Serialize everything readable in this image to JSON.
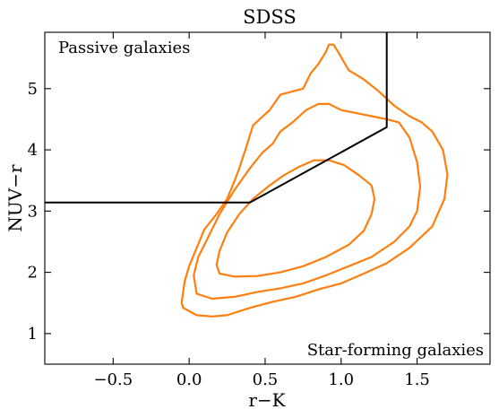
{
  "chart_data": {
    "type": "line",
    "title": "SDSS",
    "xlabel": "r−K",
    "ylabel": "NUV−r",
    "xlim": [
      -0.95,
      1.98
    ],
    "ylim": [
      0.5,
      5.92
    ],
    "xticks": [
      -0.5,
      0.0,
      0.5,
      1.0,
      1.5
    ],
    "xtick_labels": [
      "−0.5",
      "0.0",
      "0.5",
      "1.0",
      "1.5"
    ],
    "yticks": [
      1,
      2,
      3,
      4,
      5
    ],
    "ytick_labels": [
      "1",
      "2",
      "3",
      "4",
      "5"
    ],
    "grid": false,
    "legend": "none",
    "annotations": {
      "passive": "Passive galaxies",
      "star_forming": "Star-forming galaxies"
    },
    "colors": {
      "contour": "#ff7f0e",
      "boundary": "#000000"
    },
    "boundary_line": {
      "x": [
        -0.95,
        0.4,
        1.3,
        1.3
      ],
      "y": [
        3.14,
        3.14,
        4.37,
        5.92
      ]
    },
    "contours": [
      {
        "level": "outer",
        "x": [
          -0.05,
          -0.04,
          0.05,
          0.15,
          0.25,
          0.4,
          0.55,
          0.7,
          0.85,
          1.0,
          1.15,
          1.3,
          1.45,
          1.6,
          1.68,
          1.7,
          1.67,
          1.6,
          1.53,
          1.45,
          1.35,
          1.25,
          1.15,
          1.05,
          0.98,
          0.95,
          0.92,
          0.9,
          0.85,
          0.8,
          0.75,
          0.6,
          0.53,
          0.42,
          0.37,
          0.33,
          0.3,
          0.25,
          0.18,
          0.1,
          0.05,
          0.0,
          -0.03,
          -0.05
        ],
        "y": [
          1.5,
          1.42,
          1.3,
          1.28,
          1.3,
          1.42,
          1.52,
          1.6,
          1.72,
          1.82,
          1.98,
          2.15,
          2.4,
          2.75,
          3.2,
          3.6,
          4.0,
          4.3,
          4.45,
          4.55,
          4.72,
          4.95,
          5.15,
          5.3,
          5.6,
          5.72,
          5.72,
          5.6,
          5.4,
          5.25,
          5.0,
          4.9,
          4.65,
          4.4,
          4.0,
          3.7,
          3.5,
          3.2,
          2.95,
          2.7,
          2.4,
          2.1,
          1.85,
          1.5
        ]
      },
      {
        "level": "middle",
        "x": [
          0.05,
          0.15,
          0.3,
          0.45,
          0.6,
          0.75,
          0.9,
          1.05,
          1.2,
          1.35,
          1.45,
          1.5,
          1.52,
          1.5,
          1.45,
          1.38,
          1.3,
          1.2,
          1.1,
          1.0,
          0.92,
          0.85,
          0.77,
          0.68,
          0.6,
          0.55,
          0.48,
          0.4,
          0.3,
          0.2,
          0.12,
          0.06,
          0.03,
          0.05
        ],
        "y": [
          1.65,
          1.57,
          1.6,
          1.68,
          1.74,
          1.82,
          1.95,
          2.1,
          2.25,
          2.5,
          2.75,
          3.0,
          3.4,
          3.8,
          4.2,
          4.45,
          4.5,
          4.55,
          4.6,
          4.65,
          4.75,
          4.75,
          4.65,
          4.45,
          4.3,
          4.1,
          3.95,
          3.7,
          3.35,
          2.95,
          2.55,
          2.25,
          1.95,
          1.65
        ]
      },
      {
        "level": "inner",
        "x": [
          0.2,
          0.3,
          0.45,
          0.6,
          0.75,
          0.9,
          1.05,
          1.15,
          1.2,
          1.22,
          1.2,
          1.12,
          1.02,
          0.92,
          0.82,
          0.72,
          0.62,
          0.52,
          0.42,
          0.33,
          0.25,
          0.2,
          0.18,
          0.2
        ],
        "y": [
          1.98,
          1.93,
          1.94,
          2.0,
          2.1,
          2.25,
          2.45,
          2.68,
          2.95,
          3.2,
          3.42,
          3.58,
          3.75,
          3.83,
          3.83,
          3.72,
          3.58,
          3.4,
          3.2,
          2.95,
          2.65,
          2.35,
          2.12,
          1.98
        ]
      }
    ]
  }
}
